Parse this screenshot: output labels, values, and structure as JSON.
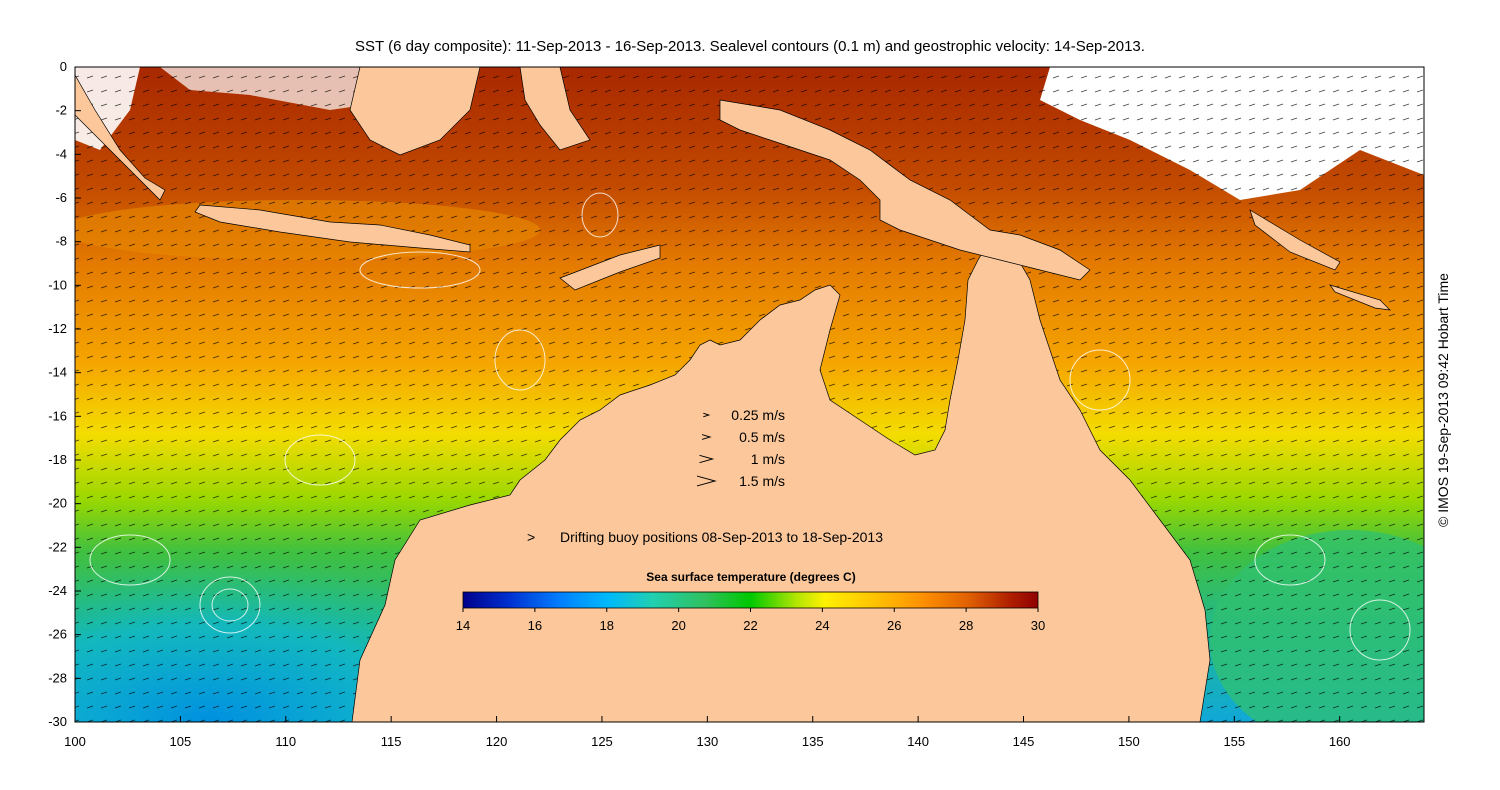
{
  "title": "SST (6 day composite): 11-Sep-2013 - 16-Sep-2013. Sealevel contours (0.1 m) and geostrophic velocity: 14-Sep-2013.",
  "copyright": "© IMOS 19-Sep-2013 09:42 Hobart Time",
  "axes": {
    "x_ticks": [
      "100",
      "105",
      "110",
      "115",
      "120",
      "125",
      "130",
      "135",
      "140",
      "145",
      "150",
      "155",
      "160"
    ],
    "y_ticks": [
      "0",
      "-2",
      "-4",
      "-6",
      "-8",
      "-10",
      "-12",
      "-14",
      "-16",
      "-18",
      "-20",
      "-22",
      "-24",
      "-26",
      "-28",
      "-30"
    ],
    "xlim": [
      100,
      164
    ],
    "ylim": [
      -30,
      0
    ]
  },
  "velocity_legend": [
    {
      "label": "0.25 m/s",
      "speed": 0.25
    },
    {
      "label": "0.5 m/s",
      "speed": 0.5
    },
    {
      "label": "1 m/s",
      "speed": 1
    },
    {
      "label": "1.5 m/s",
      "speed": 1.5
    }
  ],
  "buoy_legend": {
    "label": "Drifting buoy positions 08-Sep-2013 to 18-Sep-2013",
    "color": "#e040e0"
  },
  "colorbar": {
    "title": "Sea surface temperature (degrees C)",
    "ticks": [
      "14",
      "16",
      "18",
      "20",
      "22",
      "24",
      "26",
      "28",
      "30"
    ],
    "range": [
      14,
      30
    ]
  },
  "colors": {
    "land": "#fcc89b",
    "sst_stops": [
      "#00008b",
      "#0050ff",
      "#00b4ff",
      "#20d0b0",
      "#40c060",
      "#00c800",
      "#b4e600",
      "#fff000",
      "#ffc000",
      "#ff9000",
      "#e06000",
      "#b02000",
      "#900000"
    ]
  }
}
